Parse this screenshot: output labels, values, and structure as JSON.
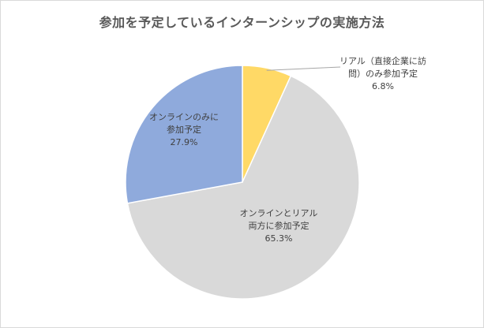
{
  "chart_data": {
    "type": "pie",
    "title": "参加を予定しているインターンシップの実施方法",
    "slices": [
      {
        "label_lines": [
          "リアル（直接企業に訪",
          "問）のみ参加予定"
        ],
        "value": 6.8,
        "value_label": "6.8%",
        "color": "#ffd966"
      },
      {
        "label_lines": [
          "オンラインとリアル",
          "両方に参加予定"
        ],
        "value": 65.3,
        "value_label": "65.3%",
        "color": "#d9d9d9"
      },
      {
        "label_lines": [
          "オンラインのみに",
          "参加予定"
        ],
        "value": 27.9,
        "value_label": "27.9%",
        "color": "#8faadc"
      }
    ],
    "start_angle_deg": 0,
    "direction": "clockwise",
    "slice_border_color": "#ffffff"
  }
}
